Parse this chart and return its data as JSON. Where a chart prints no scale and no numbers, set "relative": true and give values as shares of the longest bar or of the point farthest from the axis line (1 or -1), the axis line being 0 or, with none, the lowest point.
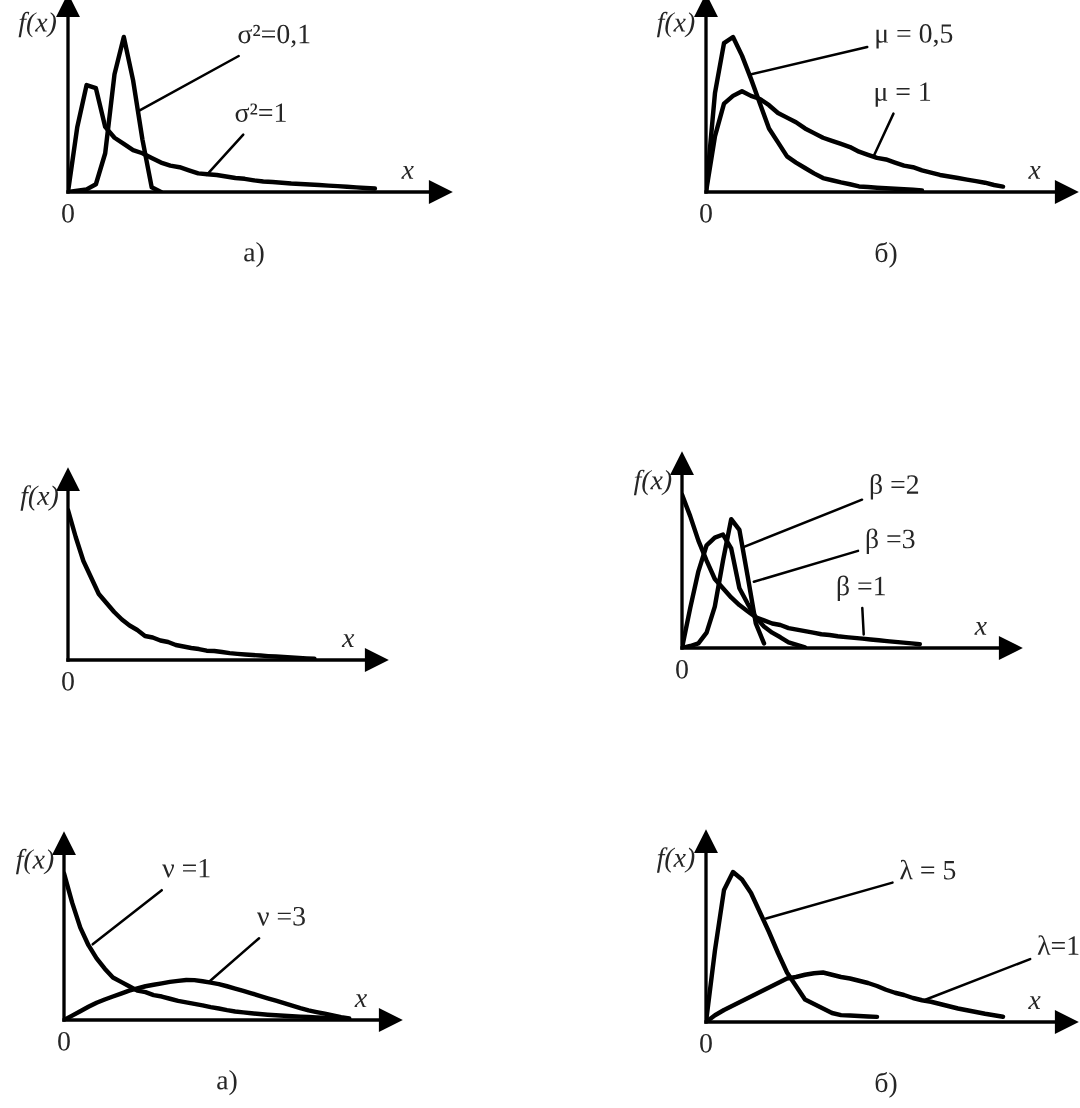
{
  "chart_data": [
    {
      "type": "line",
      "relative": true,
      "xlabel": "x",
      "ylabel": "f(x)",
      "categories": [
        null,
        null,
        null,
        null,
        null,
        null,
        null,
        null,
        null,
        null,
        null,
        null,
        null,
        null,
        null,
        null,
        null,
        null,
        null,
        null,
        null,
        null,
        null,
        null,
        null,
        null,
        null,
        null,
        null,
        null,
        null,
        null,
        null,
        null,
        null,
        null,
        null,
        null,
        null,
        null,
        null
      ],
      "series": [
        {
          "color": "#000000",
          "values": [
            0,
            0.42,
            0.69,
            0.67,
            0.42,
            0.35,
            0.31,
            0.27,
            0.25,
            0.22,
            0.19,
            0.17,
            0.16,
            0.14,
            0.12,
            0.115,
            0.11,
            0.1,
            0.09,
            0.085,
            0.075,
            0.068,
            0.064,
            0.06,
            0.055,
            0.052,
            0.048,
            0.045,
            0.041,
            0.038,
            0.034,
            0.03,
            0.026,
            0.022,
            null,
            null,
            null,
            null,
            null,
            null,
            null
          ]
        },
        {
          "color": "#000000",
          "values": [
            0,
            0.008,
            0.017,
            0.05,
            0.25,
            0.76,
            1,
            0.72,
            0.34,
            0.03,
            0,
            null,
            null,
            null,
            null,
            null,
            null,
            null,
            null,
            null,
            null,
            null,
            null,
            null,
            null,
            null,
            null,
            null,
            null,
            null,
            null,
            null,
            null,
            null,
            null,
            null,
            null,
            null,
            null,
            null,
            null
          ]
        }
      ],
      "annotations": [
        "σ²=0,1",
        "σ²=1",
        "0",
        "а)"
      ]
    },
    {
      "type": "line",
      "relative": true,
      "xlabel": "x",
      "ylabel": "f(x)",
      "categories": [
        null,
        null,
        null,
        null,
        null,
        null,
        null,
        null,
        null,
        null,
        null,
        null,
        null,
        null,
        null,
        null,
        null,
        null,
        null,
        null,
        null,
        null,
        null,
        null,
        null,
        null,
        null,
        null,
        null,
        null,
        null,
        null,
        null,
        null,
        null,
        null,
        null,
        null,
        null,
        null,
        null
      ],
      "series": [
        {
          "color": "#000000",
          "values": [
            0,
            0.64,
            0.96,
            1,
            0.88,
            0.73,
            0.57,
            0.41,
            0.32,
            0.23,
            0.19,
            0.155,
            0.12,
            0.09,
            0.076,
            0.062,
            0.05,
            0.036,
            0.032,
            0.028,
            0.024,
            0.021,
            0.018,
            0.014,
            0.01,
            null,
            null,
            null,
            null,
            null,
            null,
            null,
            null,
            null,
            null,
            null,
            null,
            null,
            null,
            null,
            null
          ]
        },
        {
          "color": "#000000",
          "values": [
            0,
            0.36,
            0.57,
            0.62,
            0.65,
            0.62,
            0.6,
            0.56,
            0.51,
            0.48,
            0.45,
            0.41,
            0.38,
            0.35,
            0.33,
            0.31,
            0.29,
            0.26,
            0.24,
            0.22,
            0.21,
            0.19,
            0.17,
            0.16,
            0.14,
            0.125,
            0.11,
            0.1,
            0.09,
            0.08,
            0.07,
            0.06,
            0.045,
            0.035,
            null,
            null,
            null,
            null,
            null,
            null,
            null
          ]
        }
      ],
      "annotations": [
        "μ = 0,5",
        "μ = 1",
        "0",
        "б)"
      ]
    },
    {
      "type": "line",
      "relative": true,
      "xlabel": "x",
      "ylabel": "f(x)",
      "categories": [
        null,
        null,
        null,
        null,
        null,
        null,
        null,
        null,
        null,
        null,
        null,
        null,
        null,
        null,
        null,
        null,
        null,
        null,
        null,
        null,
        null,
        null,
        null,
        null,
        null,
        null,
        null,
        null,
        null,
        null,
        null,
        null,
        null,
        null,
        null,
        null,
        null,
        null,
        null,
        null,
        null
      ],
      "series": [
        {
          "color": "#000000",
          "values": [
            1,
            0.82,
            0.66,
            0.55,
            0.44,
            0.38,
            0.32,
            0.27,
            0.23,
            0.2,
            0.16,
            0.15,
            0.13,
            0.12,
            0.1,
            0.09,
            0.08,
            0.073,
            0.062,
            0.06,
            0.053,
            0.046,
            0.041,
            0.037,
            0.033,
            0.03,
            0.026,
            0.023,
            0.02,
            0.017,
            0.014,
            0.011,
            0.009,
            null,
            null,
            null,
            null,
            null,
            null,
            null,
            null
          ]
        }
      ],
      "annotations": [
        "0"
      ]
    },
    {
      "type": "line",
      "relative": true,
      "xlabel": "x",
      "ylabel": "f(x)",
      "categories": [
        null,
        null,
        null,
        null,
        null,
        null,
        null,
        null,
        null,
        null,
        null,
        null,
        null,
        null,
        null,
        null,
        null,
        null,
        null,
        null,
        null,
        null,
        null,
        null,
        null,
        null,
        null,
        null,
        null,
        null,
        null,
        null,
        null,
        null,
        null,
        null,
        null,
        null,
        null,
        null,
        null
      ],
      "series": [
        {
          "color": "#000000",
          "values": [
            1,
            0.86,
            0.7,
            0.57,
            0.45,
            0.39,
            0.33,
            0.28,
            0.24,
            0.2,
            0.18,
            0.16,
            0.15,
            0.13,
            0.12,
            0.11,
            0.1,
            0.09,
            0.085,
            0.077,
            0.071,
            0.066,
            0.061,
            0.056,
            0.05,
            0.045,
            0.04,
            0.035,
            0.03,
            0.025,
            null,
            null,
            null,
            null,
            null,
            null,
            null,
            null,
            null,
            null,
            null
          ]
        },
        {
          "color": "#000000",
          "values": [
            0,
            0.26,
            0.5,
            0.67,
            0.72,
            0.74,
            0.65,
            0.39,
            0.29,
            0.2,
            0.14,
            0.1,
            0.07,
            0.037,
            0.02,
            0.004,
            null,
            null,
            null,
            null,
            null,
            null,
            null,
            null,
            null,
            null,
            null,
            null,
            null,
            null,
            null,
            null,
            null,
            null,
            null,
            null,
            null,
            null,
            null,
            null,
            null
          ]
        },
        {
          "color": "#000000",
          "values": [
            0,
            0.013,
            0.03,
            0.1,
            0.27,
            0.57,
            0.84,
            0.77,
            0.47,
            0.16,
            0.03,
            null,
            null,
            null,
            null,
            null,
            null,
            null,
            null,
            null,
            null,
            null,
            null,
            null,
            null,
            null,
            null,
            null,
            null,
            null,
            null,
            null,
            null,
            null,
            null,
            null,
            null,
            null,
            null,
            null,
            null
          ]
        }
      ],
      "annotations": [
        "β =2",
        "β =3",
        "β =1",
        "0"
      ]
    },
    {
      "type": "line",
      "relative": true,
      "xlabel": "x",
      "ylabel": "f(x)",
      "categories": [
        null,
        null,
        null,
        null,
        null,
        null,
        null,
        null,
        null,
        null,
        null,
        null,
        null,
        null,
        null,
        null,
        null,
        null,
        null,
        null,
        null,
        null,
        null,
        null,
        null,
        null,
        null,
        null,
        null,
        null,
        null,
        null,
        null,
        null,
        null,
        null,
        null,
        null,
        null,
        null,
        null
      ],
      "series": [
        {
          "color": "#000000",
          "values": [
            1,
            0.8,
            0.63,
            0.51,
            0.42,
            0.35,
            0.29,
            0.26,
            0.23,
            0.2,
            0.19,
            0.17,
            0.16,
            0.145,
            0.13,
            0.12,
            0.11,
            0.1,
            0.088,
            0.078,
            0.067,
            0.058,
            0.052,
            0.046,
            0.041,
            0.036,
            0.032,
            0.029,
            0.026,
            0.023,
            0.02,
            0.018,
            0.015,
            0.013,
            0.01,
            null,
            null,
            null,
            null,
            null,
            null
          ]
        },
        {
          "color": "#000000",
          "values": [
            0,
            0.03,
            0.06,
            0.09,
            0.118,
            0.14,
            0.16,
            0.18,
            0.2,
            0.215,
            0.23,
            0.24,
            0.25,
            0.26,
            0.267,
            0.273,
            0.272,
            0.264,
            0.255,
            0.245,
            0.23,
            0.214,
            0.198,
            0.182,
            0.165,
            0.148,
            0.132,
            0.115,
            0.098,
            0.081,
            0.066,
            0.054,
            0.043,
            0.032,
            0.02,
            0.01,
            null,
            null,
            null,
            null,
            null
          ]
        }
      ],
      "annotations": [
        "ν =1",
        "ν =3",
        "0",
        "а)"
      ]
    },
    {
      "type": "line",
      "relative": true,
      "xlabel": "x",
      "ylabel": "f(x)",
      "categories": [
        null,
        null,
        null,
        null,
        null,
        null,
        null,
        null,
        null,
        null,
        null,
        null,
        null,
        null,
        null,
        null,
        null,
        null,
        null,
        null,
        null,
        null,
        null,
        null,
        null,
        null,
        null,
        null,
        null,
        null,
        null,
        null,
        null,
        null,
        null,
        null,
        null,
        null,
        null,
        null,
        null
      ],
      "series": [
        {
          "color": "#000000",
          "values": [
            0,
            0.48,
            0.88,
            1,
            0.95,
            0.86,
            0.73,
            0.6,
            0.46,
            0.33,
            0.24,
            0.15,
            0.12,
            0.09,
            0.06,
            0.046,
            0.043,
            0.04,
            0.037,
            0.034,
            null,
            null,
            null,
            null,
            null,
            null,
            null,
            null,
            null,
            null,
            null,
            null,
            null,
            null,
            null,
            null,
            null,
            null,
            null,
            null,
            null
          ]
        },
        {
          "color": "#000000",
          "values": [
            0,
            0.045,
            0.08,
            0.11,
            0.14,
            0.17,
            0.2,
            0.23,
            0.26,
            0.29,
            0.3,
            0.315,
            0.325,
            0.33,
            0.315,
            0.3,
            0.29,
            0.275,
            0.26,
            0.24,
            0.215,
            0.195,
            0.18,
            0.16,
            0.145,
            0.135,
            0.12,
            0.105,
            0.09,
            0.078,
            0.067,
            0.055,
            0.045,
            0.035,
            null,
            null,
            null,
            null,
            null,
            null,
            null
          ]
        }
      ],
      "annotations": [
        "λ = 5",
        "λ=1",
        "0",
        "б)"
      ]
    }
  ]
}
